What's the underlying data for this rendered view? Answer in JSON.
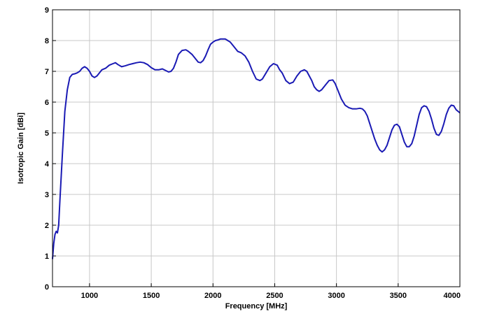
{
  "chart_data": {
    "type": "line",
    "title": "",
    "xlabel": "Frequency [MHz]",
    "ylabel": "Isotropic Gain [dBi]",
    "xlim": [
      700,
      4000
    ],
    "ylim": [
      0,
      9
    ],
    "xticks": [
      1000,
      1500,
      2000,
      2500,
      3000,
      3500,
      4000
    ],
    "yticks": [
      0,
      1,
      2,
      3,
      4,
      5,
      6,
      7,
      8,
      9
    ],
    "grid": true,
    "line_color": "#1a1ab4",
    "series": [
      {
        "x": [
          700,
          710,
          720,
          730,
          740,
          750,
          760,
          780,
          800,
          820,
          840,
          860,
          880,
          900,
          920,
          940,
          960,
          980,
          1000,
          1020,
          1040,
          1060,
          1080,
          1100,
          1130,
          1160,
          1190,
          1210,
          1230,
          1260,
          1290,
          1320,
          1350,
          1380,
          1410,
          1440,
          1470,
          1500,
          1530,
          1560,
          1590,
          1620,
          1640,
          1660,
          1680,
          1700,
          1720,
          1750,
          1780,
          1800,
          1830,
          1860,
          1880,
          1900,
          1920,
          1940,
          1960,
          1980,
          2000,
          2020,
          2040,
          2060,
          2080,
          2100,
          2120,
          2140,
          2170,
          2200,
          2230,
          2260,
          2290,
          2320,
          2350,
          2380,
          2400,
          2430,
          2460,
          2490,
          2520,
          2540,
          2560,
          2590,
          2620,
          2650,
          2680,
          2710,
          2740,
          2760,
          2780,
          2800,
          2820,
          2840,
          2860,
          2880,
          2910,
          2940,
          2970,
          2990,
          3010,
          3040,
          3070,
          3100,
          3130,
          3160,
          3190,
          3210,
          3230,
          3250,
          3270,
          3290,
          3310,
          3330,
          3350,
          3370,
          3390,
          3410,
          3430,
          3450,
          3470,
          3490,
          3510,
          3530,
          3550,
          3570,
          3590,
          3610,
          3630,
          3650,
          3670,
          3690,
          3710,
          3730,
          3750,
          3770,
          3790,
          3810,
          3830,
          3850,
          3870,
          3890,
          3910,
          3930,
          3950,
          3970,
          4000
        ],
        "values": [
          0.9,
          1.4,
          1.7,
          1.8,
          1.75,
          2.0,
          2.8,
          4.3,
          5.7,
          6.4,
          6.8,
          6.9,
          6.92,
          6.95,
          7.0,
          7.1,
          7.15,
          7.1,
          7.0,
          6.85,
          6.8,
          6.85,
          6.95,
          7.05,
          7.1,
          7.2,
          7.25,
          7.28,
          7.22,
          7.15,
          7.18,
          7.22,
          7.25,
          7.28,
          7.3,
          7.28,
          7.22,
          7.12,
          7.05,
          7.05,
          7.08,
          7.02,
          6.98,
          7.0,
          7.1,
          7.3,
          7.55,
          7.68,
          7.7,
          7.65,
          7.55,
          7.4,
          7.3,
          7.28,
          7.35,
          7.5,
          7.7,
          7.88,
          7.95,
          8.0,
          8.02,
          8.05,
          8.05,
          8.05,
          8.0,
          7.95,
          7.8,
          7.65,
          7.6,
          7.5,
          7.3,
          7.0,
          6.75,
          6.7,
          6.75,
          6.95,
          7.15,
          7.25,
          7.2,
          7.05,
          6.95,
          6.7,
          6.6,
          6.65,
          6.85,
          7.0,
          7.05,
          7.0,
          6.85,
          6.7,
          6.5,
          6.4,
          6.35,
          6.4,
          6.55,
          6.7,
          6.72,
          6.6,
          6.4,
          6.1,
          5.9,
          5.82,
          5.78,
          5.78,
          5.8,
          5.78,
          5.7,
          5.55,
          5.3,
          5.05,
          4.8,
          4.6,
          4.45,
          4.38,
          4.45,
          4.6,
          4.85,
          5.1,
          5.25,
          5.28,
          5.2,
          4.95,
          4.7,
          4.55,
          4.55,
          4.65,
          4.9,
          5.25,
          5.6,
          5.82,
          5.88,
          5.85,
          5.7,
          5.45,
          5.15,
          4.95,
          4.92,
          5.05,
          5.3,
          5.6,
          5.8,
          5.9,
          5.88,
          5.75,
          5.65
        ]
      }
    ]
  }
}
